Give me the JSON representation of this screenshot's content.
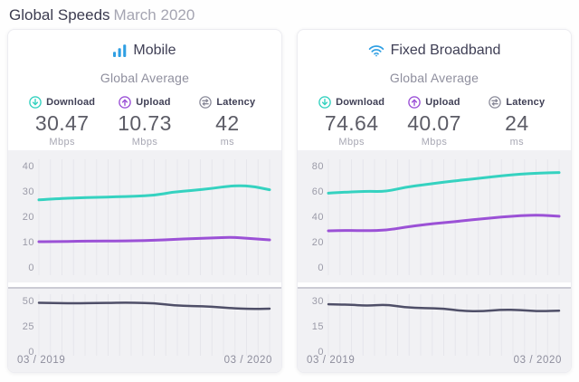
{
  "page": {
    "title": "Global Speeds",
    "subtitle": "March 2020"
  },
  "colors": {
    "brand_blue": "#2f9fe3",
    "download_teal": "#35d2c0",
    "upload_purple": "#9b51d6",
    "latency_slate": "#4f4f68",
    "chart_background": "#f1f1f4",
    "gridline": "#e6e6eb"
  },
  "cards": [
    {
      "title": "Mobile",
      "icon": "mobile-signal-bars-icon",
      "section_label": "Global Average",
      "metrics": [
        {
          "label": "Download",
          "value": "30.47",
          "unit": "Mbps",
          "icon": "download-circle-icon"
        },
        {
          "label": "Upload",
          "value": "10.73",
          "unit": "Mbps",
          "icon": "upload-circle-icon"
        },
        {
          "label": "Latency",
          "value": "42",
          "unit": "ms",
          "icon": "latency-circle-icon"
        }
      ]
    },
    {
      "title": "Fixed Broadband",
      "icon": "wifi-icon",
      "section_label": "Global Average",
      "metrics": [
        {
          "label": "Download",
          "value": "74.64",
          "unit": "Mbps",
          "icon": "download-circle-icon"
        },
        {
          "label": "Upload",
          "value": "40.07",
          "unit": "Mbps",
          "icon": "upload-circle-icon"
        },
        {
          "label": "Latency",
          "value": "24",
          "unit": "ms",
          "icon": "latency-circle-icon"
        }
      ]
    }
  ],
  "chart_data": [
    {
      "name": "mobile-speeds",
      "type": "line",
      "x_range": [
        "03 / 2019",
        "03 / 2020"
      ],
      "x_points_monthly": 13,
      "ylim": [
        0,
        40
      ],
      "yticks": [
        "40",
        "30",
        "20",
        "10",
        "0"
      ],
      "grid": true,
      "series": [
        {
          "name": "Download (Mbps)",
          "color": "#35d2c0",
          "values": [
            26.5,
            27.0,
            27.3,
            27.5,
            27.7,
            27.9,
            28.3,
            29.6,
            30.2,
            31.0,
            32.1,
            32.0,
            30.5
          ]
        },
        {
          "name": "Upload (Mbps)",
          "color": "#9b51d6",
          "values": [
            10.0,
            10.1,
            10.15,
            10.25,
            10.3,
            10.4,
            10.55,
            10.9,
            11.2,
            11.45,
            11.8,
            11.3,
            10.7
          ]
        }
      ]
    },
    {
      "name": "mobile-latency",
      "type": "line",
      "x_range": [
        "03 / 2019",
        "03 / 2020"
      ],
      "x_axis_labels": [
        "03 / 2019",
        "03 / 2020"
      ],
      "x_points_monthly": 13,
      "ylim": [
        0,
        50
      ],
      "yticks": [
        "50",
        "25",
        "0"
      ],
      "grid": true,
      "series": [
        {
          "name": "Latency (ms)",
          "color": "#4f4f68",
          "values": [
            47.8,
            47.5,
            47.2,
            47.6,
            47.9,
            47.8,
            47.5,
            45.2,
            44.6,
            43.9,
            42.4,
            41.6,
            42.0
          ]
        }
      ]
    },
    {
      "name": "fixed-broadband-speeds",
      "type": "line",
      "x_range": [
        "03 / 2019",
        "03 / 2020"
      ],
      "x_points_monthly": 13,
      "ylim": [
        0,
        80
      ],
      "yticks": [
        "80",
        "60",
        "40",
        "20",
        "0"
      ],
      "grid": true,
      "series": [
        {
          "name": "Download (Mbps)",
          "color": "#35d2c0",
          "values": [
            58.3,
            59.2,
            59.8,
            59.6,
            63.0,
            65.0,
            67.0,
            68.8,
            70.3,
            72.0,
            73.3,
            74.2,
            74.6
          ]
        },
        {
          "name": "Upload (Mbps)",
          "color": "#9b51d6",
          "values": [
            28.6,
            28.9,
            28.7,
            29.0,
            31.5,
            33.5,
            35.0,
            36.5,
            38.0,
            39.5,
            40.6,
            41.0,
            40.1
          ]
        }
      ]
    },
    {
      "name": "fixed-broadband-latency",
      "type": "line",
      "x_range": [
        "03 / 2019",
        "03 / 2020"
      ],
      "x_axis_labels": [
        "03 / 2019",
        "03 / 2020"
      ],
      "x_points_monthly": 13,
      "ylim": [
        0,
        30
      ],
      "yticks": [
        "30",
        "15",
        "0"
      ],
      "grid": true,
      "series": [
        {
          "name": "Latency (ms)",
          "color": "#4f4f68",
          "values": [
            27.8,
            27.6,
            26.9,
            27.7,
            25.9,
            25.5,
            25.3,
            23.8,
            23.6,
            24.6,
            24.4,
            23.6,
            24.0
          ]
        }
      ]
    }
  ]
}
